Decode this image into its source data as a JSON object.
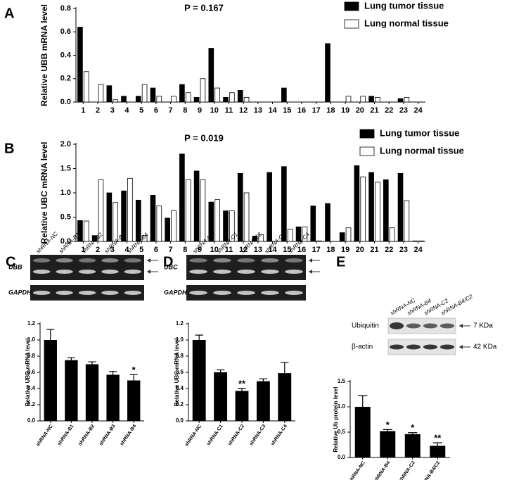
{
  "chart_data": [
    {
      "type": "bar",
      "panel": "A",
      "annotation": "P = 0.167",
      "ylabel": "Relative UBB mRNA level",
      "categories": [
        "1",
        "2",
        "3",
        "4",
        "5",
        "6",
        "7",
        "8",
        "9",
        "10",
        "11",
        "12",
        "13",
        "14",
        "15",
        "16",
        "17",
        "18",
        "19",
        "20",
        "21",
        "22",
        "23",
        "24"
      ],
      "series": [
        {
          "name": "Lung tumor tissue",
          "color": "#000000",
          "values": [
            0.64,
            0,
            0.14,
            0.05,
            0.05,
            0.12,
            0,
            0.15,
            0.04,
            0.46,
            0.04,
            0.1,
            0,
            0,
            0.12,
            0,
            0,
            0.5,
            0,
            0,
            0.05,
            0,
            0.03,
            0
          ]
        },
        {
          "name": "Lung normal tissue",
          "color": "#ffffff",
          "values": [
            0.26,
            0.15,
            0.02,
            0,
            0.15,
            0.05,
            0.05,
            0.08,
            0.2,
            0.12,
            0.08,
            0.04,
            0,
            0,
            0,
            0,
            0,
            0,
            0.05,
            0.05,
            0.04,
            0,
            0.04,
            0
          ]
        }
      ],
      "ylim": [
        0,
        0.8
      ],
      "yticks": [
        {
          "value": 0,
          "label": "0.0"
        },
        0.2,
        0.4,
        0.6,
        0.8
      ],
      "legend": "upper right"
    },
    {
      "type": "bar",
      "panel": "B",
      "annotation": "P = 0.019",
      "ylabel": "Relative UBC mRNA level",
      "categories": [
        "1",
        "2",
        "3",
        "4",
        "5",
        "6",
        "7",
        "8",
        "9",
        "10",
        "11",
        "12",
        "13",
        "14",
        "15",
        "16",
        "17",
        "18",
        "19",
        "20",
        "21",
        "22",
        "23",
        "24"
      ],
      "series": [
        {
          "name": "Lung tumor tissue",
          "color": "#000000",
          "values": [
            0.43,
            0.12,
            1.0,
            1.04,
            0.85,
            0.95,
            0.48,
            1.8,
            1.45,
            0.81,
            0.63,
            1.4,
            0.11,
            1.42,
            1.54,
            0.3,
            0.73,
            0.78,
            0.18,
            1.56,
            1.42,
            1.27,
            1.4,
            0.01
          ]
        },
        {
          "name": "Lung normal tissue",
          "color": "#ffffff",
          "values": [
            0.42,
            1.27,
            0.8,
            1.3,
            0.12,
            0.73,
            0.63,
            1.27,
            1.27,
            0.86,
            0.63,
            1.0,
            0.14,
            0,
            0.25,
            0.3,
            0.01,
            0,
            0.28,
            1.33,
            1.22,
            0.28,
            0.84,
            0.01
          ]
        }
      ],
      "ylim": [
        0,
        2.0
      ],
      "yticks": [
        {
          "value": 0,
          "label": "0.0"
        },
        0.5,
        {
          "value": 1,
          "label": "1.0"
        },
        1.5,
        {
          "value": 2,
          "label": "2.0"
        }
      ],
      "legend": "upper right"
    },
    {
      "type": "bar",
      "panel": "C",
      "ylabel": "Relative UBB mRNA level",
      "color": "#000000",
      "categories": [
        "shRNA-NC",
        "shRNA-B1",
        "shRNA-B2",
        "shRNA-B3",
        "shRNA-B4"
      ],
      "values": [
        1.0,
        0.75,
        0.7,
        0.57,
        0.5
      ],
      "errors": [
        0.13,
        0.03,
        0.03,
        0.04,
        0.07
      ],
      "significance": [
        null,
        null,
        null,
        null,
        "*"
      ],
      "ylim": [
        0,
        1.2
      ],
      "yticks": [
        {
          "value": 0,
          "label": "0.0"
        },
        0.2,
        0.4,
        0.6,
        0.8,
        {
          "value": 1,
          "label": "1.0"
        },
        1.2
      ],
      "gel": {
        "rows": [
          {
            "label": "UBB"
          },
          {
            "label": "GAPDH"
          }
        ]
      }
    },
    {
      "type": "bar",
      "panel": "D",
      "ylabel": "Relative UBC mRNA level",
      "color": "#000000",
      "categories": [
        "shRNA-NC",
        "shRNA-C1",
        "shRNA-C2",
        "shRNA-C3",
        "shRNA-C4"
      ],
      "values": [
        1.0,
        0.6,
        0.37,
        0.49,
        0.59
      ],
      "errors": [
        0.06,
        0.03,
        0.03,
        0.03,
        0.13
      ],
      "significance": [
        null,
        null,
        "**",
        null,
        null
      ],
      "ylim": [
        0,
        1.2
      ],
      "yticks": [
        {
          "value": 0,
          "label": "0.0"
        },
        0.2,
        0.4,
        0.6,
        0.8,
        {
          "value": 1,
          "label": "1.0"
        },
        1.2
      ],
      "gel": {
        "rows": [
          {
            "label": "UBC"
          },
          {
            "label": "GAPDH"
          }
        ]
      }
    },
    {
      "type": "bar",
      "panel": "E",
      "ylabel": "Relative Ub protein level",
      "color": "#000000",
      "categories": [
        "shRNA-NC",
        "shRNA-B4",
        "shRNA-C2",
        "shRNA-B4/C2"
      ],
      "values": [
        1.0,
        0.52,
        0.46,
        0.23
      ],
      "errors": [
        0.22,
        0.03,
        0.03,
        0.06
      ],
      "significance": [
        null,
        "*",
        "*",
        "**"
      ],
      "ylim": [
        0,
        1.5
      ],
      "yticks": [
        {
          "value": 0,
          "label": "0.0"
        },
        0.5,
        {
          "value": 1,
          "label": "1.0"
        },
        1.5
      ],
      "blot": {
        "rows": [
          {
            "label": "Ubiquitin",
            "size": "7 KDa"
          },
          {
            "label": "β-actin",
            "size": "42 KDa"
          }
        ]
      }
    }
  ]
}
